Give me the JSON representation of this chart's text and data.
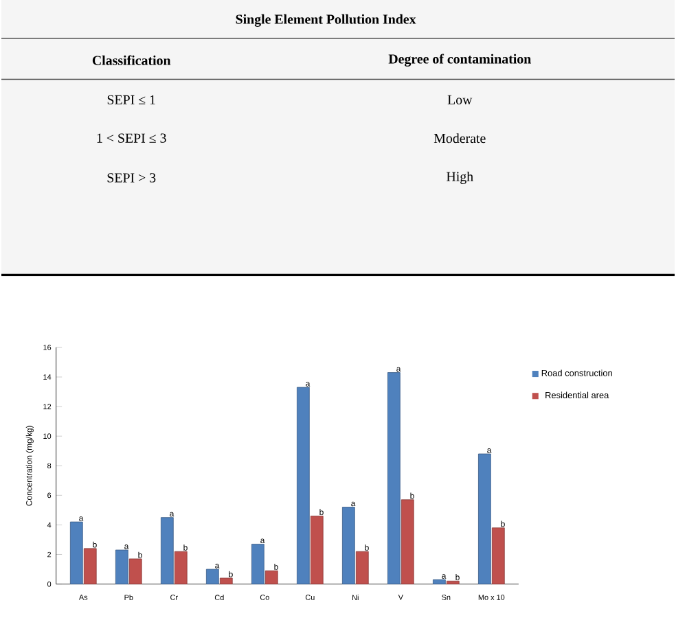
{
  "chart_data": [
    {
      "type": "other",
      "title": "Single Element Pollution Index",
      "annotations": [
        "Classification",
        "Degree of contamination",
        "SEPI ≤ 1",
        "Low",
        "1 < SEPI ≤ 3",
        "Moderate",
        "SEPI > 3",
        "High"
      ]
    },
    {
      "type": "bar",
      "ylabel": "Concentration (mg/kg)",
      "categories": [
        "As",
        "Pb",
        "Cr",
        "Cd",
        "Co",
        "Cu",
        "Ni",
        "V",
        "Sn",
        "Mo x 10"
      ],
      "series": [
        {
          "name": "Road construction",
          "color": "#4f81bd",
          "values": [
            4.2,
            2.3,
            4.5,
            1.0,
            2.7,
            13.3,
            5.2,
            14.3,
            0.3,
            8.8
          ],
          "value_labels": [
            "a",
            "a",
            "a",
            "a",
            "a",
            "a",
            "a",
            "a",
            "a",
            "a"
          ]
        },
        {
          "name": "Residential area",
          "color": "#c0504d",
          "values": [
            2.4,
            1.7,
            2.2,
            0.4,
            0.9,
            4.6,
            2.2,
            5.7,
            0.2,
            3.8
          ],
          "value_labels": [
            "b",
            "b",
            "b",
            "b",
            "b",
            "b",
            "b",
            "b",
            "b",
            "b"
          ]
        }
      ],
      "ylim": [
        0,
        16
      ],
      "yticks": [
        0,
        2,
        4,
        6,
        8,
        10,
        12,
        14,
        16
      ],
      "legend": "top right",
      "grid": false
    }
  ]
}
